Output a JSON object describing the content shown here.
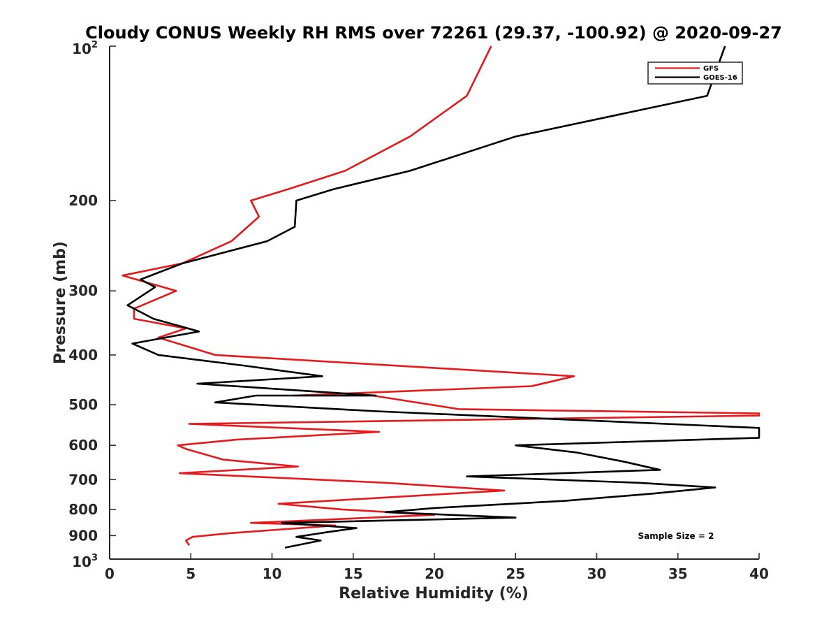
{
  "chart_data": {
    "type": "line",
    "title": "Cloudy CONUS Weekly RH RMS over 72261 (29.37, -100.92) @ 2020-09-27",
    "xlabel": "Relative Humidity (%)",
    "ylabel": "Pressure (mb)",
    "xlim": [
      0,
      40
    ],
    "ylim": [
      100,
      1000
    ],
    "y_scale": "log",
    "y_reversed": true,
    "grid": false,
    "legend_position": "top-right",
    "x_ticks": [
      "0",
      "5",
      "10",
      "15",
      "20",
      "25",
      "30",
      "35",
      "40"
    ],
    "y_tick_values": [
      200,
      300,
      400,
      500,
      600,
      700,
      800,
      900
    ],
    "y_tick_labels": [
      "200",
      "300",
      "400",
      "500",
      "600",
      "700",
      "800",
      "900"
    ],
    "y_top_label": {
      "base": "10",
      "exp": "2"
    },
    "y_bottom_label": {
      "base": "10",
      "exp": "3"
    },
    "annotation": "Sample Size = 2",
    "series": [
      {
        "name": "GFS",
        "color": "#e41a1c",
        "x": [
          23.5,
          22.0,
          18.5,
          14.5,
          11.0,
          8.7,
          9.2,
          7.5,
          4.5,
          0.8,
          4.1,
          1.5,
          1.5,
          4.7,
          3.0,
          6.5,
          28.6,
          26.0,
          11.3,
          16.2,
          21.5,
          40.0,
          40.0,
          4.9,
          16.6,
          7.8,
          4.2,
          4.7,
          7.0,
          11.6,
          4.3,
          17.0,
          24.3,
          10.4,
          14.3,
          20.0,
          8.7,
          13.9,
          7.4,
          5.1,
          4.7,
          4.9
        ],
        "y": [
          100,
          125,
          150,
          175,
          190,
          200,
          215,
          240,
          265,
          280,
          300,
          325,
          340,
          355,
          370,
          400,
          440,
          460,
          480,
          480,
          510,
          520,
          525,
          545,
          565,
          585,
          600,
          610,
          640,
          660,
          680,
          710,
          735,
          780,
          800,
          820,
          850,
          860,
          890,
          905,
          920,
          940
        ]
      },
      {
        "name": "GOES-16",
        "color": "#000000",
        "x": [
          37.9,
          36.8,
          25.0,
          18.5,
          13.8,
          11.5,
          11.4,
          9.7,
          4.5,
          1.9,
          2.8,
          1.1,
          2.7,
          5.5,
          1.4,
          3.0,
          8.4,
          13.1,
          5.4,
          16.4,
          9.0,
          6.5,
          16.5,
          40.0,
          40.0,
          25.0,
          28.8,
          31.6,
          33.9,
          22.0,
          32.6,
          37.3,
          33.5,
          28.0,
          20.0,
          17.0,
          25.0,
          10.6,
          15.2,
          13.5,
          11.5,
          13.0,
          10.8
        ],
        "y": [
          100,
          125,
          150,
          175,
          190,
          200,
          225,
          240,
          265,
          285,
          295,
          320,
          340,
          360,
          380,
          400,
          420,
          440,
          455,
          480,
          480,
          495,
          515,
          555,
          580,
          600,
          620,
          645,
          670,
          690,
          710,
          725,
          745,
          770,
          795,
          810,
          830,
          850,
          870,
          885,
          905,
          920,
          950
        ]
      }
    ]
  }
}
